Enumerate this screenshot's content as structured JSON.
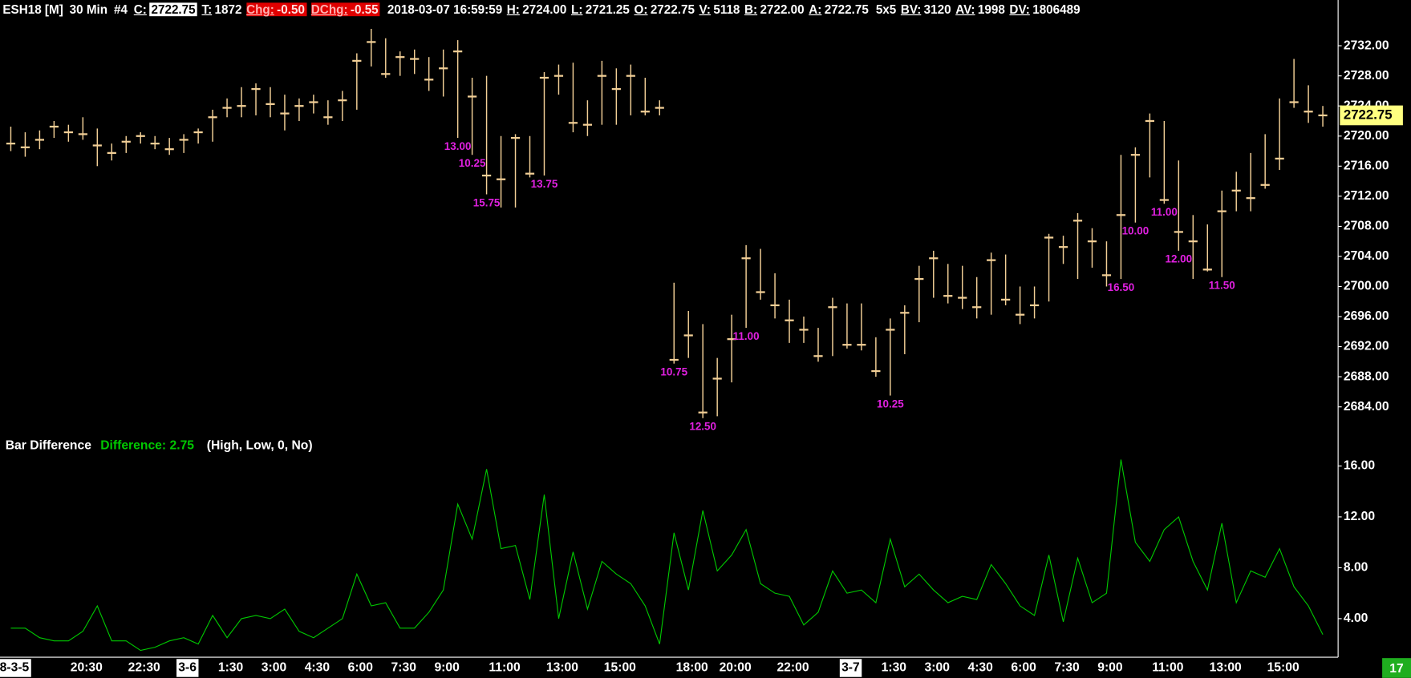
{
  "header": {
    "instrument": "ESH18 [M]",
    "interval": "30 Min",
    "chart_number": "#4",
    "fields": [
      {
        "label": "C:",
        "value": "2722.75",
        "style": "inverse"
      },
      {
        "label": "T:",
        "value": "1872"
      },
      {
        "label": "Chg:",
        "value": "-0.50",
        "style": "alert"
      },
      {
        "label": "DChg:",
        "value": "-0.55",
        "style": "alert"
      },
      {
        "value": "2018-03-07 16:59:59"
      },
      {
        "label": "H:",
        "value": "2724.00"
      },
      {
        "label": "L:",
        "value": "2721.25"
      },
      {
        "label": "O:",
        "value": "2722.75"
      },
      {
        "label": "V:",
        "value": "5118"
      },
      {
        "label": "B:",
        "value": "2722.00"
      },
      {
        "label": "A:",
        "value": "2722.75"
      },
      {
        "value": "5x5"
      },
      {
        "label": "BV:",
        "value": "3120"
      },
      {
        "label": "AV:",
        "value": "1998"
      },
      {
        "label": "DV:",
        "value": "1806489"
      }
    ]
  },
  "status": {
    "badge": "17"
  },
  "chart_data": [
    {
      "type": "hlc",
      "color": "#f2cf96",
      "label_color": "#e020e0",
      "categories": [
        "8-3-5",
        null,
        null,
        null,
        null,
        "20:30",
        null,
        null,
        null,
        "22:30",
        null,
        null,
        "3-6",
        null,
        null,
        "1:30",
        null,
        null,
        "3:00",
        null,
        null,
        "4:30",
        null,
        null,
        "6:00",
        null,
        null,
        "7:30",
        null,
        null,
        "9:00",
        null,
        null,
        null,
        "11:00",
        null,
        null,
        null,
        "13:00",
        null,
        null,
        null,
        "15:00",
        null,
        null,
        null,
        null,
        "18:00",
        null,
        null,
        "20:00",
        null,
        null,
        null,
        "22:00",
        null,
        null,
        null,
        "3-7",
        null,
        null,
        "1:30",
        null,
        null,
        "3:00",
        null,
        null,
        "4:30",
        null,
        null,
        "6:00",
        null,
        null,
        "7:30",
        null,
        null,
        "9:00",
        null,
        null,
        null,
        "11:00",
        null,
        null,
        null,
        "13:00",
        null,
        null,
        null,
        "15:00",
        null,
        null,
        null
      ],
      "high": [
        2721.25,
        2720.5,
        2720.75,
        2722,
        2721.5,
        2722.5,
        2721,
        2719,
        2720,
        2720.5,
        2720,
        2719.75,
        2720.25,
        2721,
        2723.5,
        2725,
        2726.5,
        2727,
        2726.5,
        2725.5,
        2725,
        2725.5,
        2724.75,
        2726,
        2731,
        2734.25,
        2733,
        2731.25,
        2731.5,
        2730.5,
        2731.5,
        2732.75,
        2727.75,
        2728,
        2720,
        2720.25,
        2720,
        2728.5,
        2729.5,
        2729.75,
        2724.75,
        2730,
        2729,
        2729.5,
        2727.75,
        2724.75,
        2700.5,
        2696.75,
        2695,
        2690.5,
        2696.25,
        2705.5,
        2705,
        2701.75,
        2698.25,
        2696,
        2694.5,
        2698.5,
        2697.75,
        2697.75,
        2693.25,
        2695.75,
        2697.5,
        2702.75,
        2704.75,
        2703,
        2702.75,
        2701.25,
        2704.5,
        2704.25,
        2700,
        2700,
        2707,
        2706.75,
        2709.75,
        2707.75,
        2706,
        2717.5,
        2718.5,
        2723,
        2722,
        2716.75,
        2709.5,
        2708.25,
        2712.75,
        2715.25,
        2717.75,
        2720.25,
        2725,
        2730.25,
        2726.75,
        2724
      ],
      "low": [
        2718,
        2717.25,
        2718.25,
        2719.75,
        2719.25,
        2719.5,
        2716,
        2716.75,
        2717.75,
        2719,
        2718.25,
        2717.5,
        2717.75,
        2719,
        2719.25,
        2722.5,
        2722.5,
        2722.75,
        2722.5,
        2720.75,
        2722,
        2723,
        2721.5,
        2722,
        2723.5,
        2729.25,
        2727.75,
        2728,
        2728.25,
        2726,
        2725.25,
        2719.75,
        2717.5,
        2712.25,
        2710.5,
        2710.5,
        2714.5,
        2714.75,
        2725.5,
        2720.5,
        2720,
        2721.5,
        2721.5,
        2722.75,
        2722.75,
        2722.75,
        2689.75,
        2690.5,
        2682.5,
        2682.75,
        2687.25,
        2694.5,
        2698.25,
        2695.75,
        2692.5,
        2692.5,
        2690,
        2690.75,
        2691.75,
        2691.5,
        2688,
        2685.5,
        2691,
        2695.25,
        2698.5,
        2697.75,
        2697,
        2695.75,
        2696.25,
        2697.5,
        2695,
        2695.75,
        2698,
        2703,
        2701,
        2702.5,
        2700,
        2701,
        2708.5,
        2714.5,
        2711,
        2704.75,
        2701,
        2702,
        2701.25,
        2710,
        2710,
        2713,
        2715.5,
        2723.75,
        2721.75,
        2721.25
      ],
      "close": [
        2719,
        2718.5,
        2719.5,
        2721.25,
        2720.5,
        2720.25,
        2718.75,
        2717.75,
        2719.25,
        2720,
        2719,
        2718.25,
        2719.5,
        2720.5,
        2722.5,
        2723.75,
        2724,
        2726.25,
        2724.25,
        2723,
        2724,
        2724.5,
        2722.5,
        2724.75,
        2730,
        2732.5,
        2728.25,
        2730.5,
        2730.25,
        2727.5,
        2729,
        2731.25,
        2725.25,
        2714.75,
        2714.25,
        2719.75,
        2715,
        2727.75,
        2728,
        2721.75,
        2721.5,
        2728,
        2726.25,
        2728,
        2723.25,
        2723.75,
        2690.25,
        2693.5,
        2683.25,
        2687.75,
        2693,
        2703.75,
        2699.25,
        2697.5,
        2695.5,
        2694.25,
        2690.75,
        2697.25,
        2692.25,
        2692.25,
        2688.75,
        2694.25,
        2696.5,
        2701,
        2703.75,
        2698.75,
        2698.5,
        2697.25,
        2703.5,
        2698.25,
        2696.25,
        2697.5,
        2706.5,
        2705.25,
        2708.75,
        2706,
        2701.5,
        2709.5,
        2717.5,
        2722,
        2711.5,
        2707.25,
        2706,
        2702.25,
        2710,
        2712.75,
        2711.75,
        2713.5,
        2717,
        2724.5,
        2723.25,
        2722.75
      ],
      "range_labels": [
        null,
        null,
        null,
        null,
        null,
        null,
        null,
        null,
        null,
        null,
        null,
        null,
        null,
        null,
        null,
        null,
        null,
        null,
        null,
        null,
        null,
        null,
        null,
        null,
        null,
        null,
        null,
        null,
        null,
        null,
        null,
        "13.00",
        "10.25",
        "15.75",
        null,
        null,
        null,
        "13.75",
        null,
        null,
        null,
        null,
        null,
        null,
        null,
        null,
        "10.75",
        null,
        "12.50",
        null,
        null,
        "11.00",
        null,
        null,
        null,
        null,
        null,
        null,
        null,
        null,
        null,
        "10.25",
        null,
        null,
        null,
        null,
        null,
        null,
        null,
        null,
        null,
        null,
        null,
        null,
        null,
        null,
        null,
        "16.50",
        "10.00",
        null,
        "11.00",
        "12.00",
        null,
        null,
        "11.50",
        null,
        null,
        null,
        null,
        null,
        null,
        null
      ],
      "last_price": {
        "value": 2722.75,
        "label": "2722.75"
      },
      "ylim": [
        2680,
        2734.5
      ],
      "yticks": [
        {
          "value": 2732,
          "label": "2732.00"
        },
        {
          "value": 2728,
          "label": "2728.00"
        },
        {
          "value": 2724,
          "label": "2724.00"
        },
        {
          "value": 2720,
          "label": "2720.00"
        },
        {
          "value": 2716,
          "label": "2716.00"
        },
        {
          "value": 2712,
          "label": "2712.00"
        },
        {
          "value": 2708,
          "label": "2708.00"
        },
        {
          "value": 2704,
          "label": "2704.00"
        },
        {
          "value": 2700,
          "label": "2700.00"
        },
        {
          "value": 2696,
          "label": "2696.00"
        },
        {
          "value": 2692,
          "label": "2692.00"
        },
        {
          "value": 2688,
          "label": "2688.00"
        },
        {
          "value": 2684,
          "label": "2684.00"
        }
      ]
    },
    {
      "type": "line",
      "title": "Bar Difference",
      "legend_text": "Difference: 2.75",
      "subtitle": "(High, Low, 0, No)",
      "series": [
        {
          "name": "Difference",
          "color": "#00c800",
          "values": [
            3.25,
            3.25,
            2.5,
            2.25,
            2.25,
            3.0,
            5.0,
            2.25,
            2.25,
            1.5,
            1.75,
            2.25,
            2.5,
            2.0,
            4.25,
            2.5,
            4.0,
            4.25,
            4.0,
            4.75,
            3.0,
            2.5,
            3.25,
            4.0,
            7.5,
            5.0,
            5.25,
            3.25,
            3.25,
            4.5,
            6.25,
            13.0,
            10.25,
            15.75,
            9.5,
            9.75,
            5.5,
            13.75,
            4.0,
            9.25,
            4.75,
            8.5,
            7.5,
            6.75,
            5.0,
            2.0,
            10.75,
            6.25,
            12.5,
            7.75,
            9.0,
            11.0,
            6.75,
            6.0,
            5.75,
            3.5,
            4.5,
            7.75,
            6.0,
            6.25,
            5.25,
            10.25,
            6.5,
            7.5,
            6.25,
            5.25,
            5.75,
            5.5,
            8.25,
            6.75,
            5.0,
            4.25,
            9.0,
            3.75,
            8.75,
            5.25,
            6.0,
            16.5,
            10.0,
            8.5,
            11.0,
            12.0,
            8.5,
            6.25,
            11.5,
            5.25,
            7.75,
            7.25,
            9.5,
            6.5,
            5.0,
            2.75
          ]
        }
      ],
      "ylim": [
        1.25,
        18
      ],
      "yticks": [
        {
          "value": 4,
          "label": "4.00"
        },
        {
          "value": 8,
          "label": "8.00"
        },
        {
          "value": 12,
          "label": "12.00"
        },
        {
          "value": 16,
          "label": "16.00"
        }
      ]
    }
  ]
}
